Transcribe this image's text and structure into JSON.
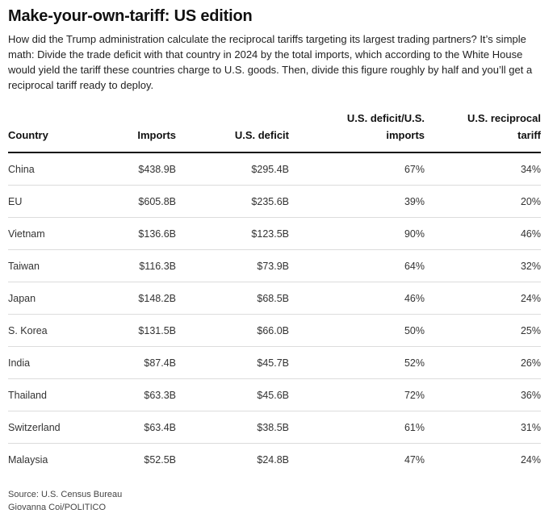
{
  "title": "Make-your-own-tariff: US edition",
  "subtitle": "How did the Trump administration calculate the reciprocal tariffs targeting its largest trading partners? It’s simple math: Divide the trade deficit with that country in 2024 by the total imports, which according to the White House would yield the tariff these countries charge to U.S. goods. Then, divide this figure roughly by half and you’ll get a reciprocal tariff ready to deploy.",
  "chart_data": {
    "type": "table",
    "columns": [
      "Country",
      "Imports",
      "U.S. deficit",
      "U.S. deficit/U.S. imports",
      "U.S. reciprocal tariff"
    ],
    "rows": [
      [
        "China",
        "$438.9B",
        "$295.4B",
        "67%",
        "34%"
      ],
      [
        "EU",
        "$605.8B",
        "$235.6B",
        "39%",
        "20%"
      ],
      [
        "Vietnam",
        "$136.6B",
        "$123.5B",
        "90%",
        "46%"
      ],
      [
        "Taiwan",
        "$116.3B",
        "$73.9B",
        "64%",
        "32%"
      ],
      [
        "Japan",
        "$148.2B",
        "$68.5B",
        "46%",
        "24%"
      ],
      [
        "S. Korea",
        "$131.5B",
        "$66.0B",
        "50%",
        "25%"
      ],
      [
        "India",
        "$87.4B",
        "$45.7B",
        "52%",
        "26%"
      ],
      [
        "Thailand",
        "$63.3B",
        "$45.6B",
        "72%",
        "36%"
      ],
      [
        "Switzerland",
        "$63.4B",
        "$38.5B",
        "61%",
        "31%"
      ],
      [
        "Malaysia",
        "$52.5B",
        "$24.8B",
        "47%",
        "24%"
      ]
    ]
  },
  "footer": {
    "source": "Source:  U.S. Census Bureau",
    "credit": "Giovanna Coi/POLITICO"
  }
}
